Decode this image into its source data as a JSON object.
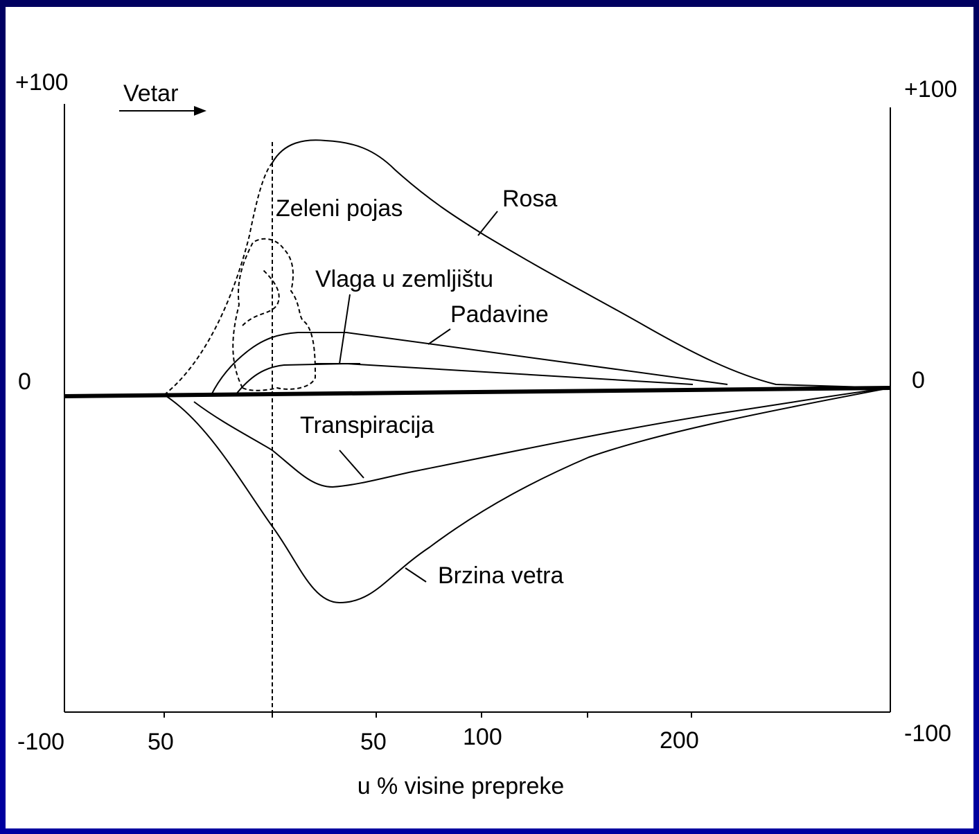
{
  "axes": {
    "left_top": "+100",
    "left_zero": "0",
    "left_bottom": "-100",
    "right_top": "+100",
    "right_zero": "0",
    "right_bottom": "-100"
  },
  "x_ticks": [
    "-100",
    "50",
    "50",
    "100",
    "200"
  ],
  "x_title": "u % visine prepreke",
  "wind": "Vetar",
  "labels": {
    "green_belt": "Zeleni pojas",
    "dew": "Rosa",
    "soil_moisture": "Vlaga u zemljištu",
    "precipitation": "Padavine",
    "transpiration": "Transpiracija",
    "wind_speed": "Brzina vetra"
  }
}
